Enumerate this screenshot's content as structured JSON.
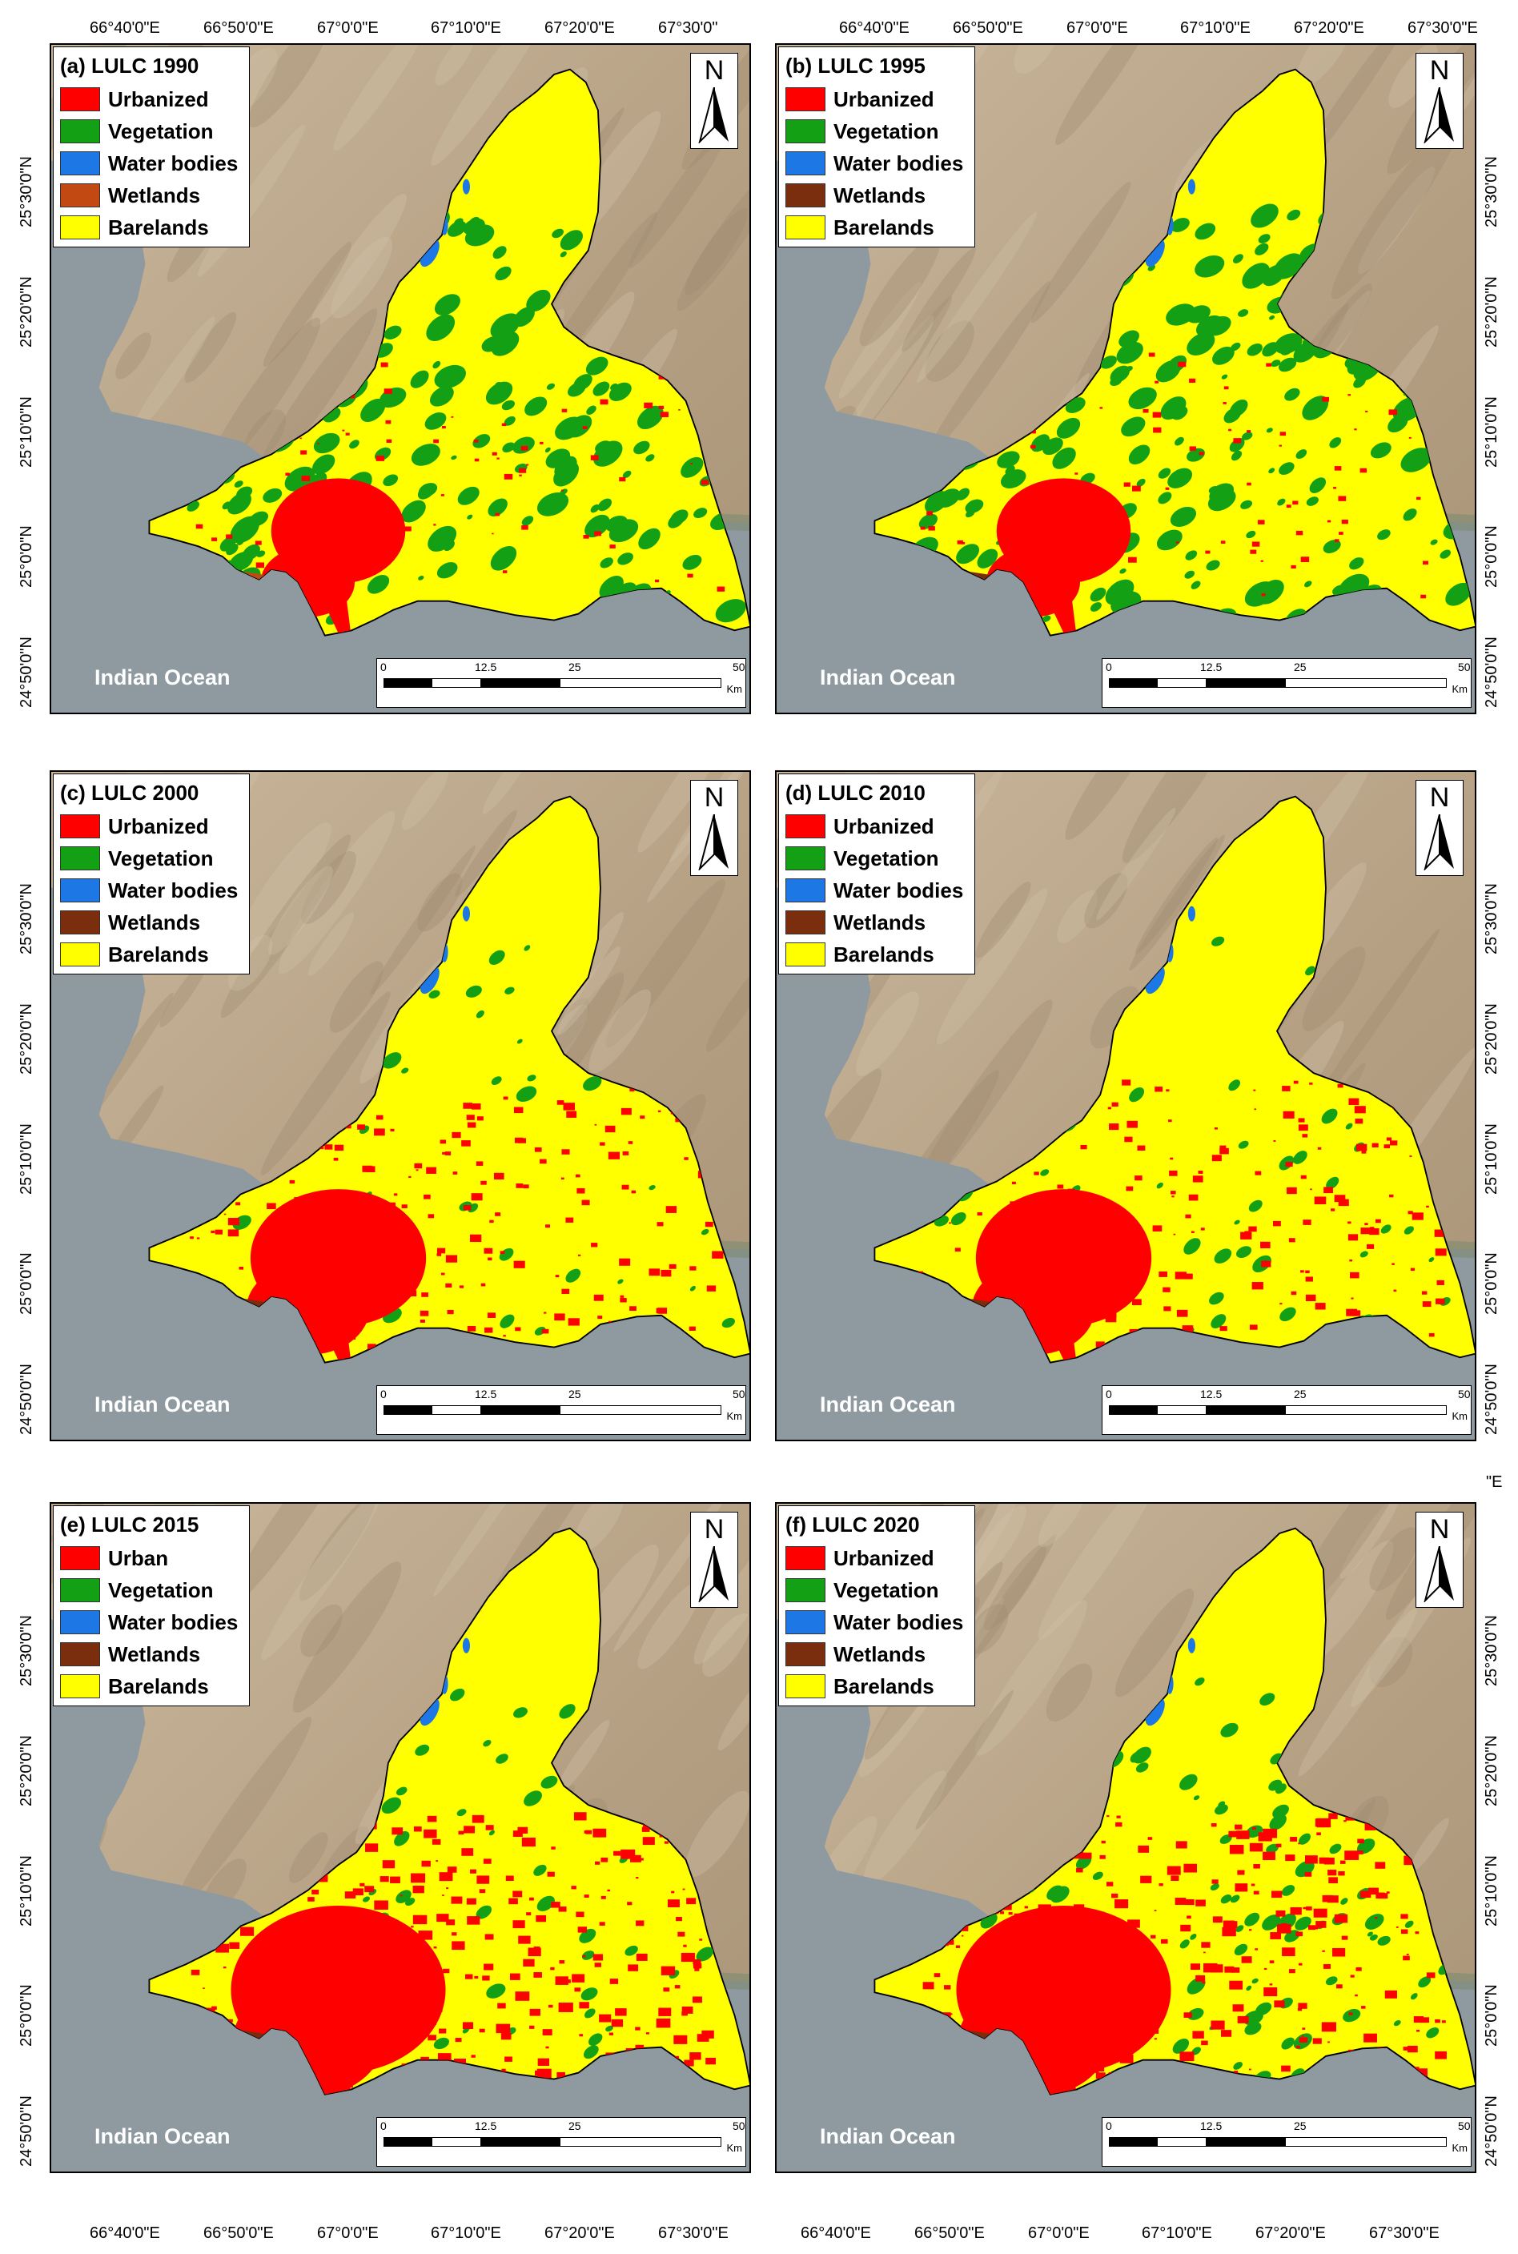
{
  "legend_colors": {
    "urban": "#ff0000",
    "vegetation": "#14a014",
    "water": "#1d78e6",
    "wetlands_brown": "#7a2e0e",
    "wetlands_orange": "#c24a12",
    "barelands": "#ffff00"
  },
  "panels": [
    {
      "title": "(a) LULC 1990",
      "labels": [
        "Urbanized",
        "Vegetation",
        "Water bodies",
        "Wetlands",
        "Barelands"
      ],
      "wetland_color": "orange",
      "urban_level": 1,
      "veg_level": 3
    },
    {
      "title": "(b) LULC 1995",
      "labels": [
        "Urbanized",
        "Vegetation",
        "Water bodies",
        "Wetlands",
        "Barelands"
      ],
      "wetland_color": "brown",
      "urban_level": 1,
      "veg_level": 3
    },
    {
      "title": "(c) LULC 2000",
      "labels": [
        "Urbanized",
        "Vegetation",
        "Water bodies",
        "Wetlands",
        "Barelands"
      ],
      "wetland_color": "brown",
      "urban_level": 2,
      "veg_level": 1
    },
    {
      "title": "(d) LULC 2010",
      "labels": [
        "Urbanized",
        "Vegetation",
        "Water bodies",
        "Wetlands",
        "Barelands"
      ],
      "wetland_color": "brown",
      "urban_level": 2,
      "veg_level": 1
    },
    {
      "title": "(e) LULC 2015",
      "labels": [
        "Urban",
        "Vegetation",
        "Water bodies",
        "Wetlands",
        "Barelands"
      ],
      "wetland_color": "brown",
      "urban_level": 3,
      "veg_level": 1
    },
    {
      "title": "(f) LULC 2020",
      "labels": [
        "Urbanized",
        "Vegetation",
        "Water bodies",
        "Wetlands",
        "Barelands"
      ],
      "wetland_color": "brown",
      "urban_level": 3,
      "veg_level": 2
    }
  ],
  "north_label": "N",
  "ocean_label": "Indian Ocean",
  "scale": {
    "ticks": [
      "0",
      "12.5",
      "25",
      "50"
    ],
    "unit": "Km"
  },
  "top_axis_left": [
    "66°40'0\"E",
    "66°50'0\"E",
    "67°0'0\"E",
    "67°10'0\"E",
    "67°20'0\"E",
    "67°30'0\""
  ],
  "top_axis_right": [
    "66°40'0\"E",
    "66°50'0\"E",
    "67°0'0\"E",
    "67°10'0\"E",
    "67°20'0\"E",
    "67°30'0\"E"
  ],
  "bottom_axis_left": [
    "66°40'0\"E",
    "66°50'0\"E",
    "67°0'0\"E",
    "67°10'0\"E",
    "67°20'0\"E",
    "67°30'0\"E"
  ],
  "bottom_axis_right": [
    "66°40'0\"E",
    "66°50'0\"E",
    "67°0'0\"E",
    "67°10'0\"E",
    "67°20'0\"E",
    "67°30'0\"E"
  ],
  "left_axis_rows": [
    [
      "25°30'0\"N",
      "25°20'0\"N",
      "25°10'0\"N",
      "25°0'0\"N",
      "24°50'0\"N"
    ],
    [
      "25°30'0\"N",
      "25°20'0\"N",
      "25°10'0\"N",
      "25°0'0\"N",
      "24°50'0\"N"
    ],
    [
      "25°30'0\"N",
      "25°20'0\"N",
      "25°10'0\"N",
      "25°0'0\"N",
      "24°50'0\"N"
    ]
  ],
  "right_axis_rows": [
    [
      "25°30'0\"N",
      "25°20'0\"N",
      "25°10'0\"N",
      "25°0'0\"N",
      "24°50'0\"N"
    ],
    [
      "25°30'0\"N",
      "25°20'0\"N",
      "25°10'0\"N",
      "25°0'0\"N",
      "24°50'0\"N"
    ],
    [
      "25°30'0\"N",
      "25°20'0\"N",
      "25°10'0\"N",
      "25°0'0\"N",
      "24°50'0\"N"
    ]
  ],
  "stray_label": "\"E"
}
